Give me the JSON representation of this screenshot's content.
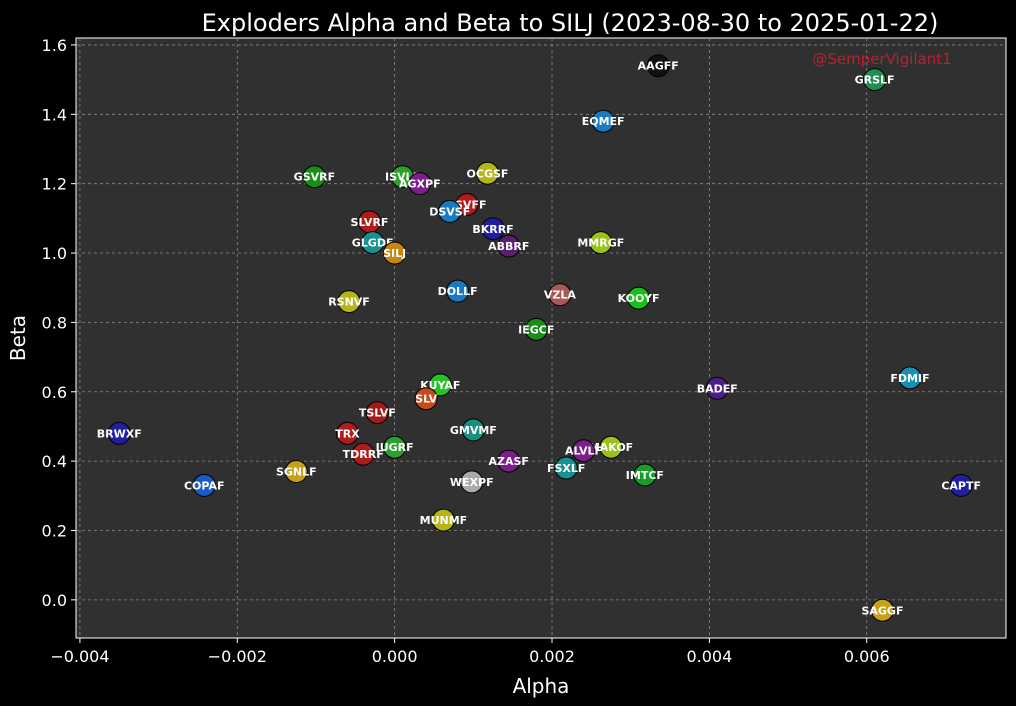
{
  "chart_data": {
    "type": "scatter",
    "title": "Exploders Alpha and Beta to SILJ (2023-08-30 to 2025-01-22)",
    "xlabel": "Alpha",
    "ylabel": "Beta",
    "xlim": [
      -0.00405,
      0.00777
    ],
    "ylim": [
      -0.11,
      1.62
    ],
    "xticks": [
      -0.004,
      -0.002,
      0.0,
      0.002,
      0.004,
      0.006
    ],
    "xtick_labels": [
      "−0.004",
      "−0.002",
      "0.000",
      "0.002",
      "0.004",
      "0.006"
    ],
    "yticks": [
      0.0,
      0.2,
      0.4,
      0.6,
      0.8,
      1.0,
      1.2,
      1.4,
      1.6
    ],
    "ytick_labels": [
      "0.0",
      "0.2",
      "0.4",
      "0.6",
      "0.8",
      "1.0",
      "1.2",
      "1.4",
      "1.6"
    ],
    "grid": true,
    "annotation": "@SemperVigilant1",
    "colors": {
      "background": "#000000",
      "plot_background": "#303030",
      "grid": "#8a8a8a",
      "text": "#ffffff",
      "watermark": "#b5232f"
    },
    "points": [
      {
        "label": "AAGFF",
        "x": 0.00335,
        "y": 1.54,
        "color": "#111111"
      },
      {
        "label": "GRSLF",
        "x": 0.0061,
        "y": 1.5,
        "color": "#1f8f4f"
      },
      {
        "label": "EQMEF",
        "x": 0.00265,
        "y": 1.38,
        "color": "#1a7abf"
      },
      {
        "label": "GSVRF",
        "x": -0.00102,
        "y": 1.22,
        "color": "#1a8c1a"
      },
      {
        "label": "ISVLF",
        "x": 0.0001,
        "y": 1.22,
        "color": "#2ca02c"
      },
      {
        "label": "OCGSF",
        "x": 0.00118,
        "y": 1.23,
        "color": "#b5b51a"
      },
      {
        "label": "AGXPF",
        "x": 0.00032,
        "y": 1.2,
        "color": "#7a1f8a"
      },
      {
        "label": "SSVFF",
        "x": 0.00092,
        "y": 1.14,
        "color": "#b01c1c"
      },
      {
        "label": "DSVSF",
        "x": 0.0007,
        "y": 1.12,
        "color": "#1a7abf"
      },
      {
        "label": "SLVRF",
        "x": -0.00032,
        "y": 1.09,
        "color": "#b01c1c"
      },
      {
        "label": "BKRRF",
        "x": 0.00125,
        "y": 1.07,
        "color": "#1f1fa0"
      },
      {
        "label": "GLGDF",
        "x": -0.00028,
        "y": 1.03,
        "color": "#1a9090"
      },
      {
        "label": "MMRGF",
        "x": 0.00262,
        "y": 1.03,
        "color": "#9ac21a"
      },
      {
        "label": "ABBRF",
        "x": 0.00145,
        "y": 1.02,
        "color": "#5a1f6a"
      },
      {
        "label": "SILJ",
        "x": 0.0,
        "y": 1.0,
        "color": "#c7860f"
      },
      {
        "label": "DOLLF",
        "x": 0.0008,
        "y": 0.89,
        "color": "#1a7abf"
      },
      {
        "label": "VZLA",
        "x": 0.0021,
        "y": 0.88,
        "color": "#a65a55"
      },
      {
        "label": "KOOYF",
        "x": 0.0031,
        "y": 0.87,
        "color": "#1abf1a"
      },
      {
        "label": "RSNVF",
        "x": -0.00058,
        "y": 0.86,
        "color": "#b5b51a"
      },
      {
        "label": "IEGCF",
        "x": 0.0018,
        "y": 0.78,
        "color": "#1a8c1a"
      },
      {
        "label": "FDMIF",
        "x": 0.00655,
        "y": 0.64,
        "color": "#1a90b0"
      },
      {
        "label": "KUYAF",
        "x": 0.00058,
        "y": 0.62,
        "color": "#2cbf2c"
      },
      {
        "label": "BADEF",
        "x": 0.0041,
        "y": 0.61,
        "color": "#4a1f8a"
      },
      {
        "label": "SLV",
        "x": 0.0004,
        "y": 0.58,
        "color": "#c74a1a"
      },
      {
        "label": "TSLVF",
        "x": -0.00022,
        "y": 0.54,
        "color": "#a01c1c"
      },
      {
        "label": "GMVMF",
        "x": 0.001,
        "y": 0.49,
        "color": "#1a9080"
      },
      {
        "label": "BRWXF",
        "x": -0.0035,
        "y": 0.48,
        "color": "#1f1fa0"
      },
      {
        "label": "TRX",
        "x": -0.0006,
        "y": 0.48,
        "color": "#b01c1c"
      },
      {
        "label": "IUGRF",
        "x": 0.0,
        "y": 0.44,
        "color": "#2ca02c"
      },
      {
        "label": "MAKOF",
        "x": 0.00275,
        "y": 0.44,
        "color": "#9ac21a"
      },
      {
        "label": "ALVLF",
        "x": 0.0024,
        "y": 0.43,
        "color": "#7a1f8a"
      },
      {
        "label": "TDRRF",
        "x": -0.0004,
        "y": 0.42,
        "color": "#b01c1c"
      },
      {
        "label": "AZASF",
        "x": 0.00145,
        "y": 0.4,
        "color": "#7a1f8a"
      },
      {
        "label": "FSXLF",
        "x": 0.00218,
        "y": 0.38,
        "color": "#1a9090"
      },
      {
        "label": "SGNLF",
        "x": -0.00125,
        "y": 0.37,
        "color": "#c7a01a"
      },
      {
        "label": "IMTCF",
        "x": 0.00318,
        "y": 0.36,
        "color": "#1a9c2a"
      },
      {
        "label": "WEXPF",
        "x": 0.00098,
        "y": 0.34,
        "color": "#aaaaaa"
      },
      {
        "label": "COPAF",
        "x": -0.00242,
        "y": 0.33,
        "color": "#1a5ac7"
      },
      {
        "label": "CAPTF",
        "x": 0.0072,
        "y": 0.33,
        "color": "#1f1fa0"
      },
      {
        "label": "MUNMF",
        "x": 0.00062,
        "y": 0.23,
        "color": "#b5b51a"
      },
      {
        "label": "SAGGF",
        "x": 0.0062,
        "y": -0.03,
        "color": "#c7a01a"
      }
    ]
  }
}
